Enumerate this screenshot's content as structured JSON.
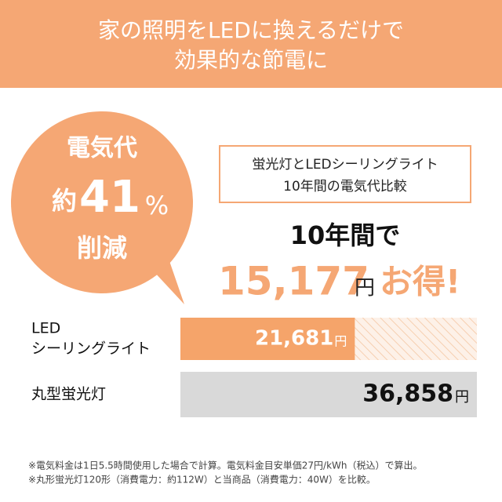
{
  "header": {
    "lines": [
      "家の照明をLEDに換えるだけで",
      "効果的な節電に"
    ]
  },
  "badge": {
    "top": "電気代",
    "prefix": "約",
    "number": "41",
    "percent": "%",
    "bottom": "削減"
  },
  "box": {
    "lines": [
      "蛍光灯とLEDシーリングライト",
      "10年間の電気代比較"
    ]
  },
  "headline": {
    "lead": "10年間で",
    "amount": "15,177",
    "unit": "円",
    "suffix": "お得!"
  },
  "bars": {
    "unit": "円",
    "items": [
      {
        "label": [
          "LED",
          "シーリングライト"
        ],
        "value": 21681,
        "value_label": "21,681"
      },
      {
        "label": [
          "丸型蛍光灯"
        ],
        "value": 36858,
        "value_label": "36,858"
      }
    ]
  },
  "footnotes": [
    "※電気料金は1日5.5時間使用した場合で計算。電気料金目安単価27円/kWh（税込）で算出。",
    "※丸形蛍光灯120形（消費電力：約112W）と当商品（消費電力：40W）を比較。"
  ]
}
